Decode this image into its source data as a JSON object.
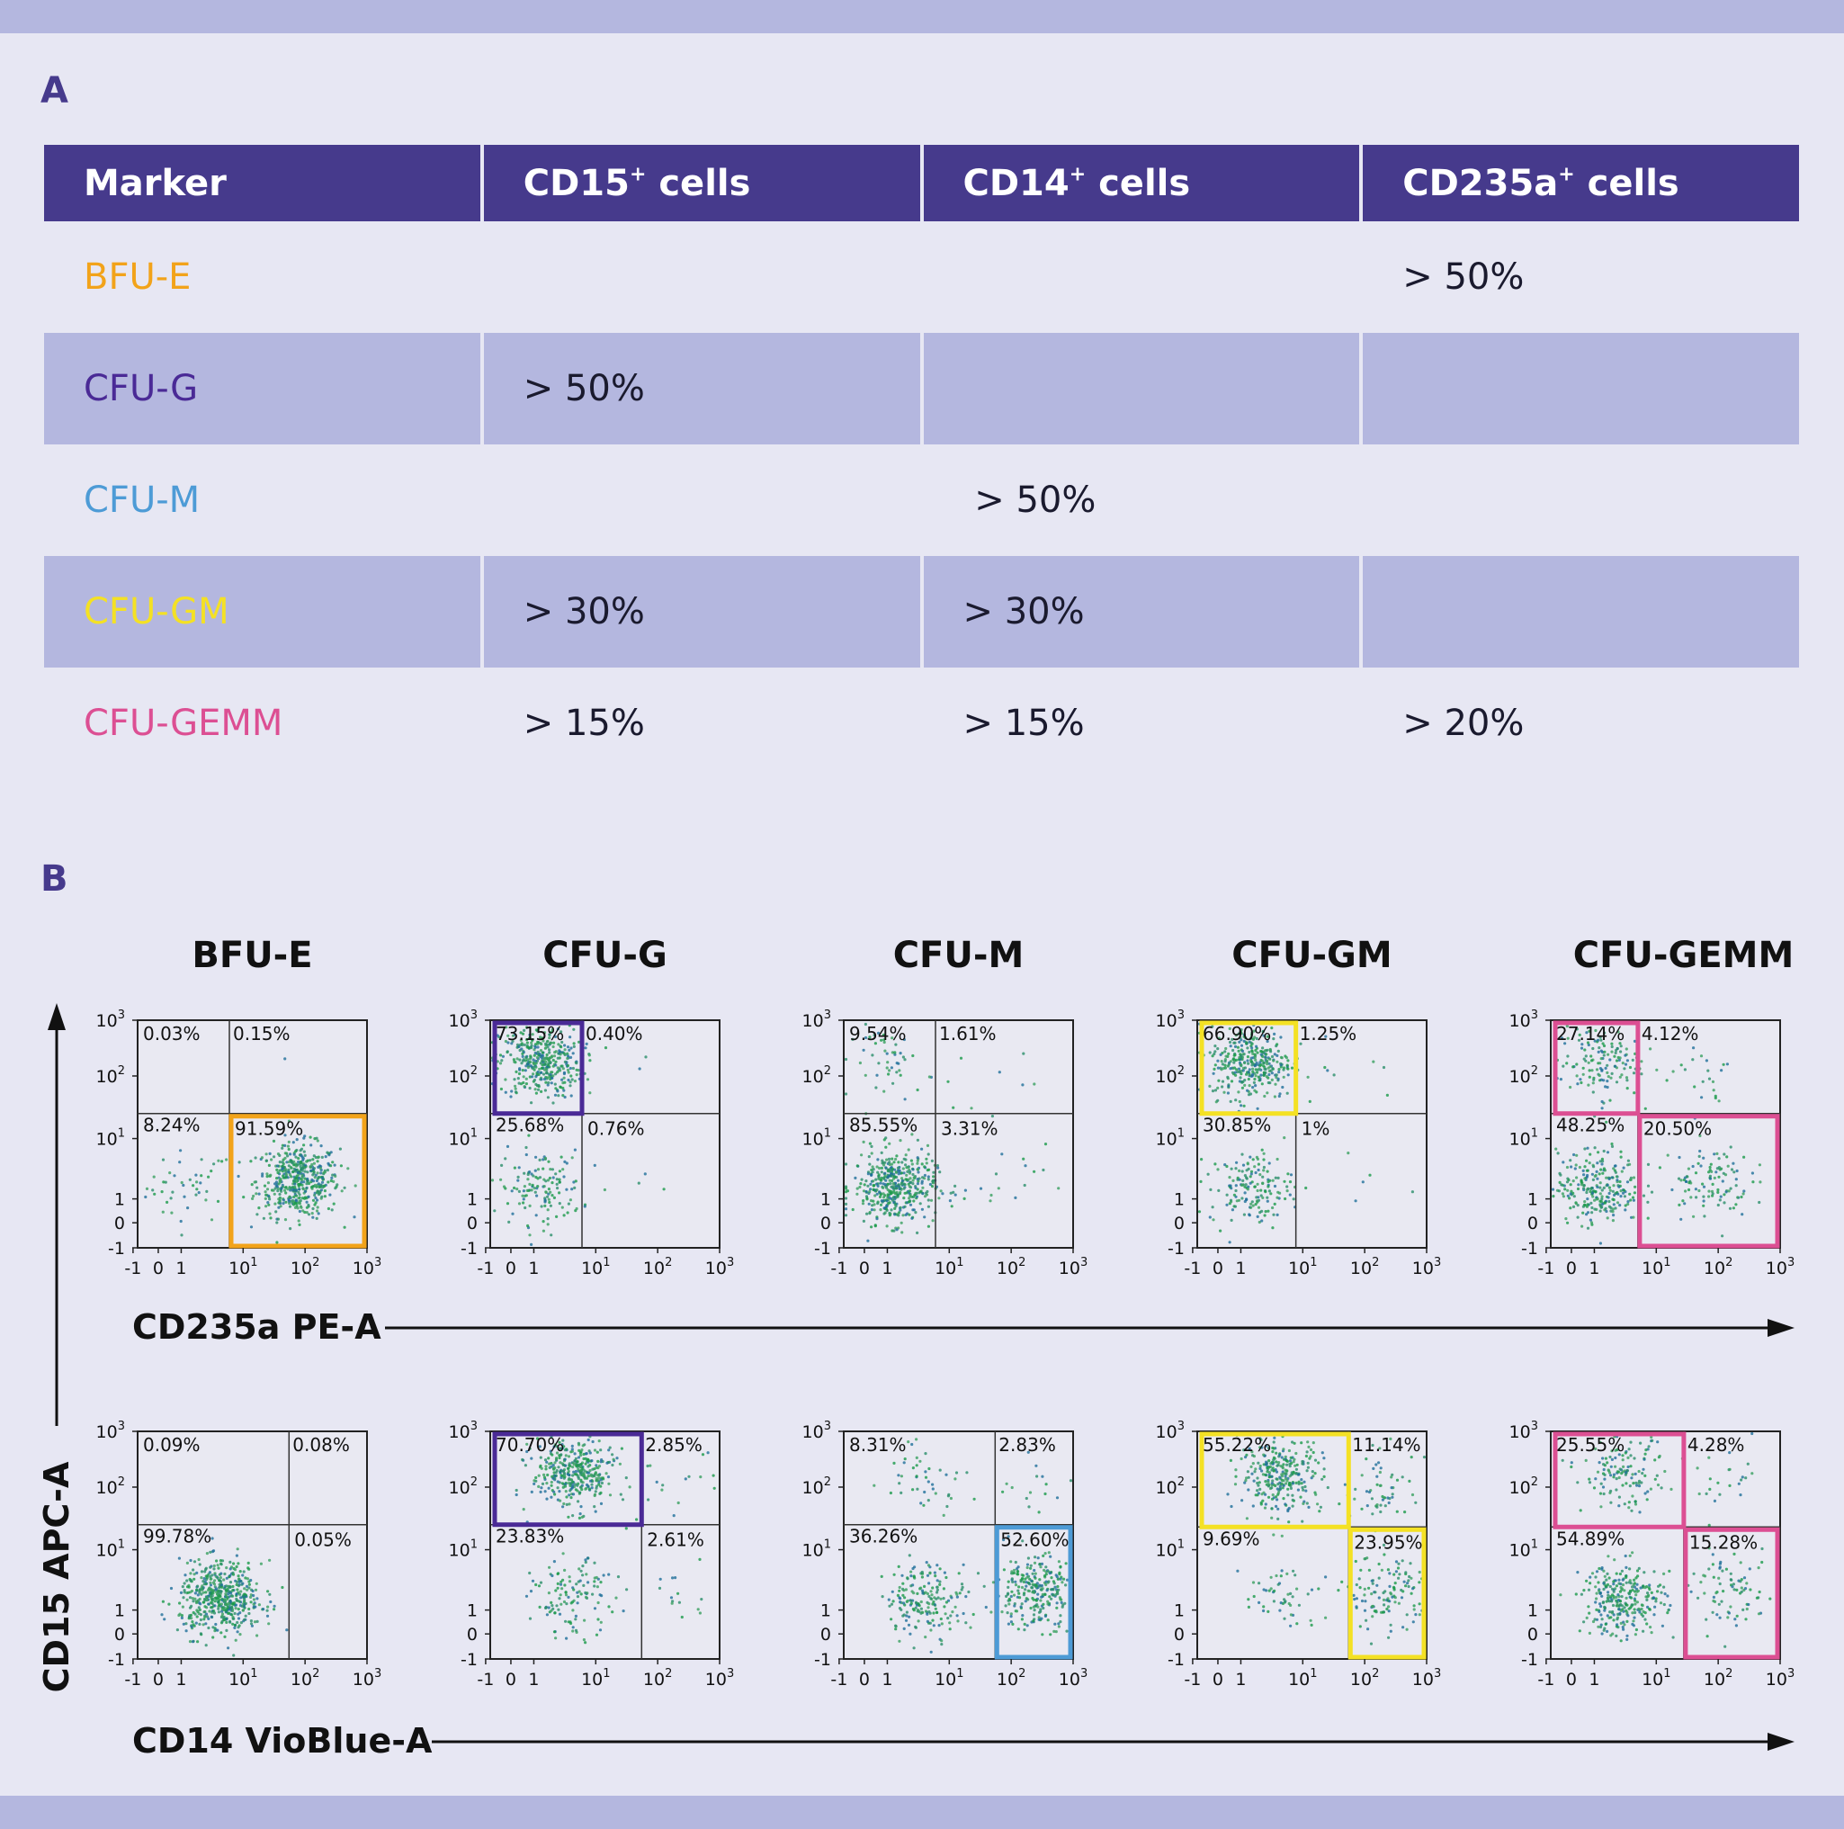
{
  "panel_labels": {
    "a": "A",
    "b": "B"
  },
  "colors": {
    "accent": "#463a8c",
    "band": "#b4b7df",
    "background": "#e7e7f3",
    "BFU-E": "#f2a31a",
    "CFU-G": "#4a2a96",
    "CFU-M": "#4d9bd6",
    "CFU-GM": "#f4e124",
    "CFU-GEMM": "#dc4f93"
  },
  "table": {
    "headers": [
      {
        "main": "Marker",
        "sup": "",
        "rest": ""
      },
      {
        "main": "CD15",
        "sup": "+",
        "rest": " cells"
      },
      {
        "main": "CD14",
        "sup": "+",
        "rest": " cells"
      },
      {
        "main": "CD235a",
        "sup": "+",
        "rest": " cells"
      }
    ],
    "rows": [
      {
        "marker": "BFU-E",
        "color": "#f2a31a",
        "cd15": "",
        "cd14": "",
        "cd235a": "> 50%"
      },
      {
        "marker": "CFU-G",
        "color": "#4a2a96",
        "cd15": "> 50%",
        "cd14": "",
        "cd235a": ""
      },
      {
        "marker": "CFU-M",
        "color": "#4d9bd6",
        "cd15": "",
        "cd14": " > 50%",
        "cd235a": ""
      },
      {
        "marker": "CFU-GM",
        "color": "#f4e124",
        "cd15": "> 30%",
        "cd14": "> 30%",
        "cd235a": ""
      },
      {
        "marker": "CFU-GEMM",
        "color": "#dc4f93",
        "cd15": "> 15%",
        "cd14": "> 15%",
        "cd235a": "> 20%"
      }
    ]
  },
  "chart_data": {
    "type": "scatter",
    "column_titles": [
      "BFU-E",
      "CFU-G",
      "CFU-M",
      "CFU-GM",
      "CFU-GEMM"
    ],
    "y_axis_label": "CD15 APC-A",
    "row_x_labels": [
      "CD235a PE-A",
      "CD14 VioBlue-A"
    ],
    "x_ticks": [
      {
        "base": "-1",
        "exp": ""
      },
      {
        "base": "0",
        "exp": ""
      },
      {
        "base": "1",
        "exp": ""
      },
      {
        "base": "10",
        "exp": "1"
      },
      {
        "base": "10",
        "exp": "2"
      },
      {
        "base": "10",
        "exp": "3"
      }
    ],
    "y_ticks": [
      {
        "base": "-1",
        "exp": ""
      },
      {
        "base": "0",
        "exp": ""
      },
      {
        "base": "1",
        "exp": ""
      },
      {
        "base": "10",
        "exp": "1"
      },
      {
        "base": "10",
        "exp": "2"
      },
      {
        "base": "10",
        "exp": "3"
      }
    ],
    "plots": [
      {
        "row": 0,
        "col": 0,
        "gate_color": "#f2a31a",
        "quadrants": {
          "ul": "0.03%",
          "ur": "0.15%",
          "ll": "8.24%",
          "lr": "91.59%"
        },
        "gate": "lr"
      },
      {
        "row": 0,
        "col": 1,
        "gate_color": "#4a2a96",
        "quadrants": {
          "ul": "73.15%",
          "ur": "0.40%",
          "ll": "25.68%",
          "lr": "0.76%"
        },
        "gate": "ul"
      },
      {
        "row": 0,
        "col": 2,
        "gate_color": "",
        "quadrants": {
          "ul": "9.54%",
          "ur": "1.61%",
          "ll": "85.55%",
          "lr": "3.31%"
        },
        "gate": ""
      },
      {
        "row": 0,
        "col": 3,
        "gate_color": "#f4e124",
        "quadrants": {
          "ul": "66.90%",
          "ur": "1.25%",
          "ll": "30.85%",
          "lr": "1%"
        },
        "gate": "ul"
      },
      {
        "row": 0,
        "col": 4,
        "gate_color": "#dc4f93",
        "quadrants": {
          "ul": "27.14%",
          "ur": "4.12%",
          "ll": "48.25%",
          "lr": "20.50%"
        },
        "gate": "ul,lr"
      },
      {
        "row": 1,
        "col": 0,
        "gate_color": "",
        "quadrants": {
          "ul": "0.09%",
          "ur": "0.08%",
          "ll": "99.78%",
          "lr": "0.05%"
        },
        "gate": ""
      },
      {
        "row": 1,
        "col": 1,
        "gate_color": "#4a2a96",
        "quadrants": {
          "ul": "70.70%",
          "ur": "2.85%",
          "ll": "23.83%",
          "lr": "2.61%"
        },
        "gate": "ul"
      },
      {
        "row": 1,
        "col": 2,
        "gate_color": "#4d9bd6",
        "quadrants": {
          "ul": "8.31%",
          "ur": "2.83%",
          "ll": "36.26%",
          "lr": "52.60%"
        },
        "gate": "lr"
      },
      {
        "row": 1,
        "col": 3,
        "gate_color": "#f4e124",
        "quadrants": {
          "ul": "55.22%",
          "ur": "11.14%",
          "ll": "9.69%",
          "lr": "23.95%"
        },
        "gate": "ul,lr"
      },
      {
        "row": 1,
        "col": 4,
        "gate_color": "#dc4f93",
        "quadrants": {
          "ul": "25.55%",
          "ur": "4.28%",
          "ll": "54.89%",
          "lr": "15.28%"
        },
        "gate": "ul,lr"
      }
    ]
  }
}
